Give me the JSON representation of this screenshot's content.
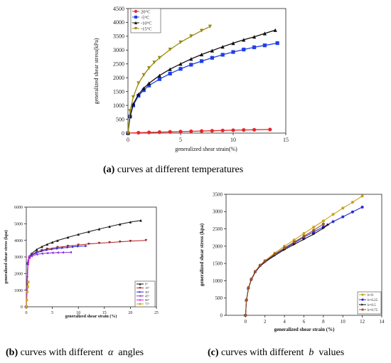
{
  "captions": [
    {
      "tag": "(a)",
      "text": "curves at different temperatures"
    },
    {
      "tag": "(b)",
      "pre": "curves with different",
      "sym": "α",
      "post": "angles"
    },
    {
      "tag": "(c)",
      "pre": "curves with different",
      "sym": "b",
      "post": "values"
    }
  ],
  "chart_data": [
    {
      "type": "line",
      "xlabel": "generalized shear strain(%)",
      "ylabel": "generalized shear stress(kPa)",
      "xlim": [
        0,
        15
      ],
      "ylim": [
        0,
        4500
      ],
      "xticks": [
        0,
        5,
        10,
        15
      ],
      "yticks": [
        0,
        500,
        1000,
        1500,
        2000,
        2500,
        3000,
        3500,
        4000,
        4500
      ],
      "legend_position": "top-left",
      "series": [
        {
          "name": "20°C",
          "color": "#e8262c",
          "marker": "circle",
          "x": [
            0,
            1,
            2,
            3,
            4,
            5,
            6,
            7,
            8,
            9,
            10,
            11,
            12,
            13.5
          ],
          "y": [
            0,
            15,
            25,
            35,
            45,
            55,
            65,
            75,
            85,
            95,
            105,
            112,
            120,
            130
          ]
        },
        {
          "name": "-5°C",
          "color": "#1f3fe8",
          "marker": "square",
          "x": [
            0,
            0.2,
            0.5,
            1,
            1.5,
            2,
            3,
            4,
            5,
            6,
            7,
            8,
            9,
            10,
            11,
            12,
            13,
            14.2
          ],
          "y": [
            0,
            600,
            1000,
            1350,
            1550,
            1720,
            1950,
            2150,
            2320,
            2470,
            2600,
            2720,
            2830,
            2930,
            3020,
            3100,
            3170,
            3250
          ]
        },
        {
          "name": "-10°C",
          "color": "#111111",
          "marker": "triangle-up",
          "x": [
            0,
            0.2,
            0.5,
            1,
            1.5,
            2,
            3,
            4,
            5,
            6,
            7,
            8,
            9,
            10,
            11,
            12,
            13,
            14
          ],
          "y": [
            0,
            620,
            1050,
            1400,
            1620,
            1800,
            2080,
            2310,
            2500,
            2680,
            2840,
            2980,
            3120,
            3250,
            3370,
            3480,
            3600,
            3720
          ]
        },
        {
          "name": "-15°C",
          "color": "#9b8a0f",
          "marker": "triangle-down",
          "x": [
            0,
            0.2,
            0.5,
            1,
            1.5,
            2,
            2.5,
            3,
            4,
            5,
            6,
            7,
            7.8
          ],
          "y": [
            0,
            800,
            1300,
            1800,
            2100,
            2350,
            2550,
            2720,
            3020,
            3280,
            3500,
            3700,
            3850
          ]
        }
      ]
    },
    {
      "type": "line",
      "xlabel": "generalized shear strain (%)",
      "ylabel": "generalized shear stress (kpa)",
      "xlim": [
        0,
        25
      ],
      "ylim": [
        0,
        6000
      ],
      "xticks": [
        0,
        5,
        10,
        15,
        20,
        25
      ],
      "yticks": [
        0,
        1000,
        2000,
        3000,
        4000,
        5000,
        6000
      ],
      "legend_position": "bottom-right",
      "series": [
        {
          "name": "0°",
          "color": "#111111",
          "marker": "triangle-up",
          "x": [
            0,
            0.3,
            0.6,
            1,
            2,
            3,
            4,
            5,
            6,
            8,
            10,
            12,
            14,
            16,
            18,
            20,
            22
          ],
          "y": [
            0,
            2600,
            3000,
            3200,
            3450,
            3620,
            3760,
            3880,
            3990,
            4180,
            4360,
            4520,
            4680,
            4830,
            4970,
            5100,
            5200
          ]
        },
        {
          "name": "15°",
          "color": "#a8232a",
          "marker": "triangle-down",
          "x": [
            0,
            0.3,
            0.6,
            1,
            2,
            3,
            4,
            6,
            8,
            10,
            12,
            14,
            16,
            18,
            20,
            23
          ],
          "y": [
            0,
            2600,
            3000,
            3150,
            3300,
            3400,
            3480,
            3580,
            3650,
            3720,
            3780,
            3830,
            3870,
            3910,
            3950,
            4000
          ]
        },
        {
          "name": "30°",
          "color": "#2b2bd6",
          "marker": "triangle-right",
          "x": [
            0,
            0.3,
            0.6,
            1,
            2,
            3,
            4,
            5,
            6,
            7,
            8,
            9,
            10,
            11.5
          ],
          "y": [
            0,
            2600,
            2950,
            3100,
            3250,
            3350,
            3420,
            3470,
            3510,
            3550,
            3580,
            3610,
            3640,
            3660
          ]
        },
        {
          "name": "45°",
          "color": "#8a2be2",
          "marker": "triangle-left",
          "x": [
            0,
            0.3,
            0.6,
            1,
            2,
            3,
            4,
            5,
            6,
            7,
            8.5
          ],
          "y": [
            0,
            2700,
            2950,
            3050,
            3150,
            3200,
            3230,
            3250,
            3260,
            3270,
            3280
          ]
        },
        {
          "name": "60°",
          "color": "#d61fd6",
          "marker": "diamond",
          "x": [
            0,
            0.2,
            0.4,
            0.6
          ],
          "y": [
            0,
            1800,
            2800,
            3050
          ]
        },
        {
          "name": "75°",
          "color": "#d4a017",
          "marker": "hexagon",
          "x": [
            0,
            0.1,
            0.2,
            0.3,
            0.4
          ],
          "y": [
            0,
            400,
            900,
            1200,
            1500
          ]
        }
      ]
    },
    {
      "type": "line",
      "xlabel": "generalized shear strain (%)",
      "ylabel": "generalized shear stress (kpa)",
      "xlim": [
        -2,
        14
      ],
      "ylim": [
        0,
        3500
      ],
      "xticks": [
        0,
        2,
        4,
        6,
        8,
        10,
        12,
        14
      ],
      "yticks": [
        0,
        500,
        1000,
        1500,
        2000,
        2500,
        3000,
        3500
      ],
      "legend_position": "bottom-right",
      "series": [
        {
          "name": "b=0",
          "color": "#c9a21a",
          "marker": "circle",
          "x": [
            0,
            0.1,
            0.3,
            0.6,
            1,
            1.5,
            2,
            3,
            4,
            5,
            6,
            7,
            8,
            9,
            10,
            11,
            12
          ],
          "y": [
            0,
            450,
            800,
            1050,
            1270,
            1450,
            1580,
            1800,
            2000,
            2180,
            2370,
            2550,
            2730,
            2920,
            3100,
            3270,
            3450
          ]
        },
        {
          "name": "b=0.25",
          "color": "#2b2bd6",
          "marker": "circle",
          "x": [
            0,
            0.1,
            0.3,
            0.6,
            1,
            1.5,
            2,
            3,
            4,
            5,
            6,
            7,
            8,
            9,
            10,
            11,
            12
          ],
          "y": [
            0,
            440,
            790,
            1040,
            1260,
            1440,
            1560,
            1760,
            1930,
            2090,
            2260,
            2410,
            2560,
            2710,
            2850,
            2990,
            3130
          ]
        },
        {
          "name": "b=0.5",
          "color": "#111111",
          "marker": "triangle-right",
          "x": [
            0,
            0.1,
            0.3,
            0.6,
            1,
            1.5,
            2,
            3,
            4,
            5,
            6,
            7,
            8,
            8.5
          ],
          "y": [
            0,
            430,
            780,
            1030,
            1250,
            1420,
            1540,
            1730,
            1900,
            2050,
            2200,
            2350,
            2520,
            2620
          ]
        },
        {
          "name": "b=0.75",
          "color": "#a0522d",
          "marker": "circle",
          "x": [
            0,
            0.1,
            0.3,
            0.6,
            1,
            1.5,
            2,
            3,
            4,
            5,
            6,
            7,
            8
          ],
          "y": [
            0,
            440,
            800,
            1050,
            1270,
            1450,
            1570,
            1770,
            1950,
            2120,
            2290,
            2460,
            2640
          ]
        }
      ]
    }
  ]
}
